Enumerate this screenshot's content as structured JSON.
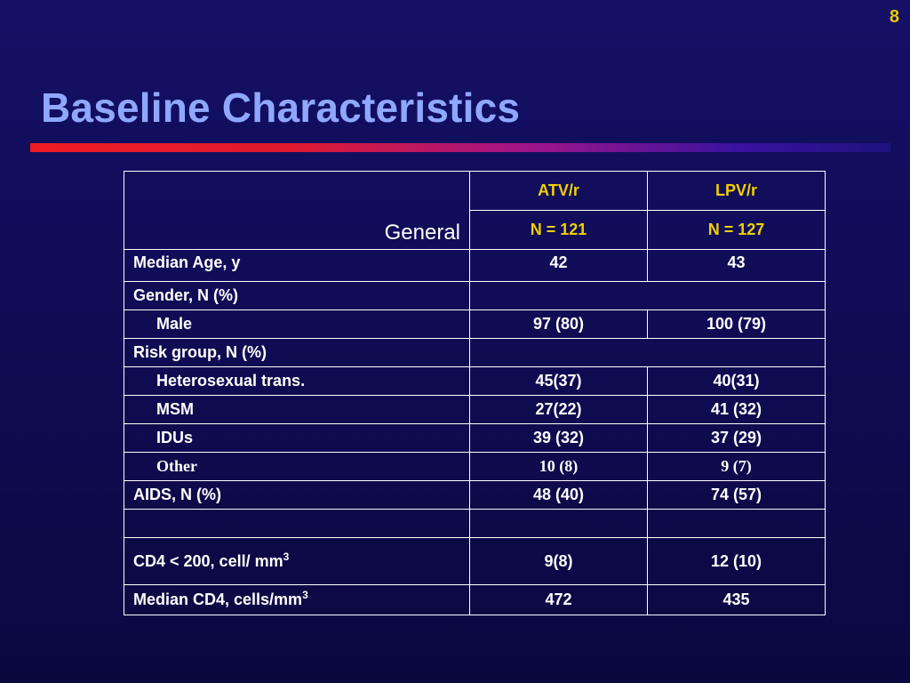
{
  "slide": {
    "page_number": "8",
    "title": "Baseline Characteristics"
  },
  "colors": {
    "background": "#100c55",
    "title": "#8fa8ff",
    "header_text": "#f0d000",
    "page_number": "#e8c800",
    "rule_start": "#ee1c24",
    "rule_end": "#1e1280"
  },
  "table": {
    "corner_label": "General",
    "columns": [
      {
        "name": "ATV/r",
        "n": "N = 121"
      },
      {
        "name": "LPV/r",
        "n": "N = 127"
      }
    ],
    "rows": {
      "median_age": {
        "label": "Median Age, y",
        "atv": "42",
        "lpv": "43"
      },
      "gender": {
        "label": "Gender, N (%)"
      },
      "male": {
        "label": "Male",
        "atv": "97 (80)",
        "lpv": "100 (79)"
      },
      "risk_group": {
        "label": "Risk group, N (%)"
      },
      "heterosexual": {
        "label": "Heterosexual trans.",
        "atv": "45(37)",
        "lpv": "40(31)"
      },
      "msm": {
        "label": "MSM",
        "atv": "27(22)",
        "lpv": "41 (32)"
      },
      "idus": {
        "label": "IDUs",
        "atv": "39 (32)",
        "lpv": "37 (29)"
      },
      "other": {
        "label": "Other",
        "atv": "10 (8)",
        "lpv": "9 (7)"
      },
      "aids": {
        "label": "AIDS, N (%)",
        "atv": "48 (40)",
        "lpv": "74 (57)"
      },
      "cd4_below": {
        "label": "CD4 < 200, cell/ mm",
        "label_sup": "3",
        "atv": "9(8)",
        "lpv": "12 (10)"
      },
      "median_cd4": {
        "label": "Median CD4, cells/mm",
        "label_sup": "3",
        "atv": "472",
        "lpv": "435"
      }
    }
  }
}
